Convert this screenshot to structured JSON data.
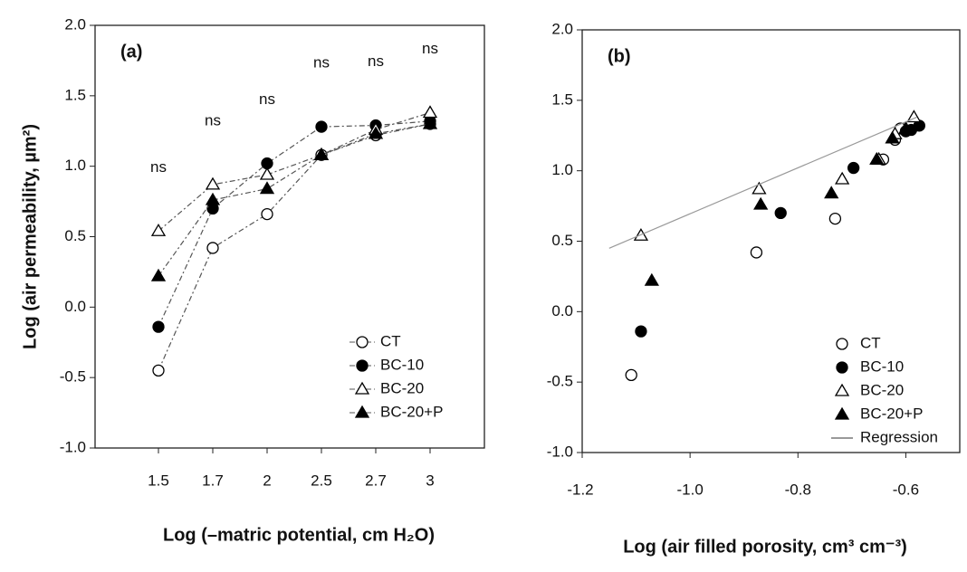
{
  "chart_data": [
    {
      "type": "line",
      "panel_label": "(a)",
      "xlabel": "Log (–matric potential, cm H₂O)",
      "ylabel": "Log (air permeability, µm²)",
      "categories": [
        "1.5",
        "1.7",
        "2",
        "2.5",
        "2.7",
        "3"
      ],
      "annotations": [
        "ns",
        "ns",
        "ns",
        "ns",
        "ns",
        "ns"
      ],
      "ylim": [
        -1,
        2
      ],
      "yticks": [
        {
          "value": -1,
          "label": "-1.0"
        },
        -0.5,
        {
          "value": 0,
          "label": "0.0"
        },
        0.5,
        {
          "value": 1,
          "label": "1.0"
        },
        1.5,
        {
          "value": 2,
          "label": "2.0"
        }
      ],
      "legend": "lower right",
      "series": [
        {
          "name": "CT",
          "color": "#000000",
          "marker": "open-circle",
          "values": [
            -0.45,
            0.42,
            0.66,
            1.08,
            1.22,
            1.3
          ]
        },
        {
          "name": "BC-10",
          "color": "#000000",
          "marker": "filled-circle",
          "values": [
            -0.14,
            0.7,
            1.02,
            1.28,
            1.29,
            1.32
          ]
        },
        {
          "name": "BC-20",
          "color": "#000000",
          "marker": "open-triangle",
          "values": [
            0.54,
            0.87,
            0.94,
            1.08,
            1.26,
            1.38
          ]
        },
        {
          "name": "BC-20+P",
          "color": "#000000",
          "marker": "filled-triangle",
          "values": [
            0.22,
            0.76,
            0.84,
            1.08,
            1.23,
            1.3
          ]
        }
      ]
    },
    {
      "type": "scatter",
      "panel_label": "(b)",
      "xlabel": "Log (air filled porosity, cm³ cm⁻³)",
      "xlim": [
        -1.2,
        -0.5
      ],
      "xticks": [
        {
          "value": -1.2,
          "label": "-1.2"
        },
        {
          "value": -1,
          "label": "-1.0"
        },
        -0.8,
        -0.6
      ],
      "ylim": [
        -1,
        2
      ],
      "yticks": [
        {
          "value": -1,
          "label": "-1.0"
        },
        -0.5,
        {
          "value": 0,
          "label": "0.0"
        },
        0.5,
        {
          "value": 1,
          "label": "1.0"
        },
        1.5,
        {
          "value": 2,
          "label": "2.0"
        }
      ],
      "legend": "lower right",
      "series": [
        {
          "name": "CT",
          "color": "#000000",
          "marker": "open-circle",
          "x": [
            -1.109,
            -0.877,
            -0.731,
            -0.642,
            -0.62,
            -0.61
          ],
          "values": [
            -0.45,
            0.42,
            0.66,
            1.08,
            1.22,
            1.3
          ]
        },
        {
          "name": "BC-10",
          "color": "#000000",
          "marker": "filled-circle",
          "x": [
            -1.091,
            -0.832,
            -0.697,
            -0.6,
            -0.59,
            -0.575
          ],
          "values": [
            -0.14,
            0.7,
            1.02,
            1.28,
            1.29,
            1.32
          ]
        },
        {
          "name": "BC-20",
          "color": "#000000",
          "marker": "open-triangle",
          "x": [
            -1.091,
            -0.872,
            -0.718,
            -0.65,
            -0.62,
            -0.585
          ],
          "values": [
            0.54,
            0.87,
            0.94,
            1.08,
            1.26,
            1.38
          ]
        },
        {
          "name": "BC-20+P",
          "color": "#000000",
          "marker": "filled-triangle",
          "x": [
            -1.071,
            -0.869,
            -0.738,
            -0.654,
            -0.625,
            -0.6
          ],
          "values": [
            0.22,
            0.76,
            0.84,
            1.08,
            1.23,
            1.3
          ]
        },
        {
          "name": "Regression",
          "color": "#999999",
          "marker": "line",
          "x": [
            -1.15,
            -0.58
          ],
          "values": [
            0.45,
            1.38
          ]
        }
      ]
    }
  ]
}
